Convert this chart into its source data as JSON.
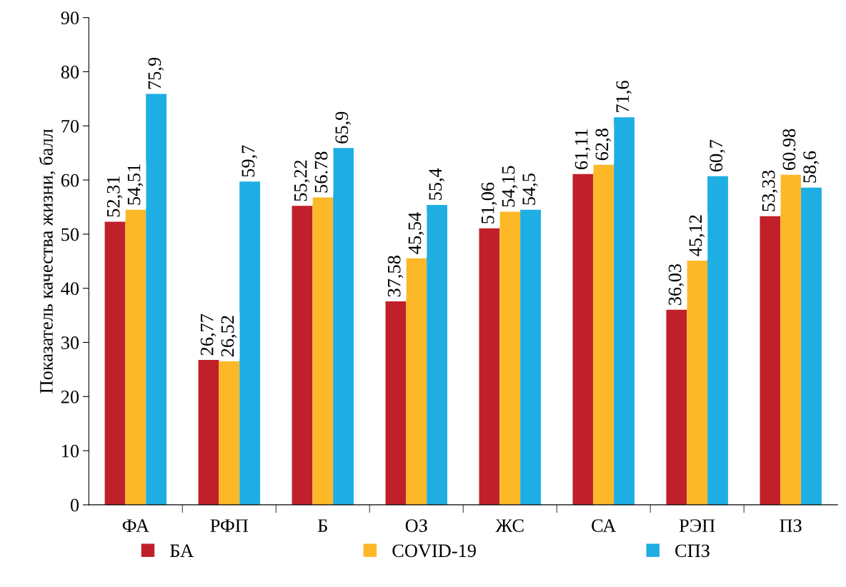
{
  "chart_data": {
    "type": "bar",
    "ylabel": "Показатель качества жизни, балл",
    "categories": [
      "ФА",
      "РФП",
      "Б",
      "ОЗ",
      "ЖС",
      "СА",
      "РЭП",
      "ПЗ"
    ],
    "series": [
      {
        "name": "БА",
        "color": "#c0202a",
        "values": [
          52.31,
          26.77,
          55.22,
          37.58,
          51.06,
          61.11,
          36.03,
          53.33
        ],
        "value_labels": [
          "52,31",
          "26,77",
          "55,22",
          "37,58",
          "51,06",
          "61,11",
          "36,03",
          "53,33"
        ]
      },
      {
        "name": "COVID-19",
        "color": "#fdb827",
        "values": [
          54.51,
          26.52,
          56.78,
          45.54,
          54.15,
          62.8,
          45.12,
          60.98
        ],
        "value_labels": [
          "54,51",
          "26,52",
          "56.78",
          "45,54",
          "54,15",
          "62,8",
          "45,12",
          "60.98"
        ]
      },
      {
        "name": "СПЗ",
        "color": "#1eaee4",
        "values": [
          75.9,
          59.7,
          65.9,
          55.4,
          54.5,
          71.6,
          60.7,
          58.6
        ],
        "value_labels": [
          "75,9",
          "59,7",
          "65,9",
          "55,4",
          "54,5",
          "71,6",
          "60,7",
          "58,6"
        ]
      }
    ],
    "ylim": [
      0,
      90
    ],
    "yticks": [
      0,
      10,
      20,
      30,
      40,
      50,
      60,
      70,
      80,
      90
    ],
    "grid": false,
    "legend": "bottom"
  }
}
